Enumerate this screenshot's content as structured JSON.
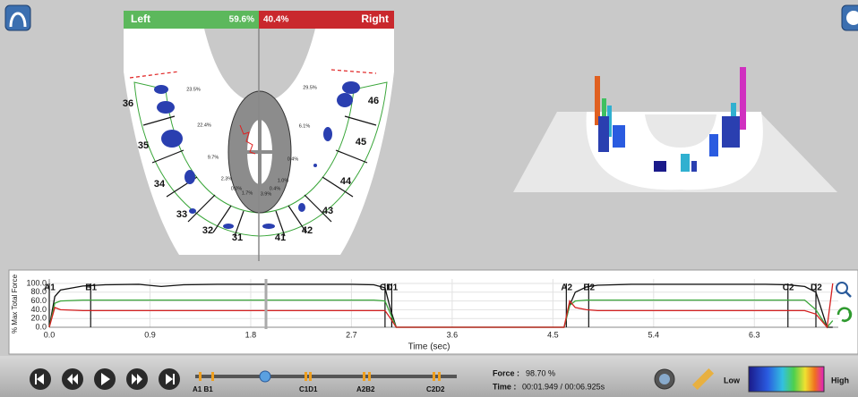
{
  "balance": {
    "left_label": "Left",
    "left_value": "59.6%",
    "right_value": "40.4%",
    "right_label": "Right"
  },
  "teeth": [
    "36",
    "35",
    "34",
    "33",
    "32",
    "31",
    "41",
    "42",
    "43",
    "44",
    "45",
    "46"
  ],
  "percentages": [
    "23.5%",
    "22.4%",
    "9.7%",
    "2.3%",
    "0.0%",
    "1.7%",
    "3.9%",
    "0.4%",
    "1.0%",
    "0.4%",
    "6.1%",
    "29.5%"
  ],
  "graph": {
    "type": "line",
    "y_label": "% Max Total Force",
    "x_label": "Time (sec)",
    "xlim": [
      0,
      7.05
    ],
    "ylim": [
      0,
      100
    ],
    "yticks": [
      {
        "value": 100,
        "label": "100.0"
      },
      {
        "value": 80,
        "label": "80.0"
      },
      {
        "value": 60,
        "label": "60.0"
      },
      {
        "value": 40,
        "label": "40.0"
      },
      {
        "value": 20,
        "label": "20.0"
      },
      {
        "value": 0,
        "label": "0.0"
      }
    ],
    "xticks": [
      {
        "value": 0,
        "label": "0.0"
      },
      0.9,
      1.8,
      2.7,
      3.6,
      4.5,
      5.4,
      6.3
    ],
    "events": [
      {
        "label": "A1",
        "x": 0
      },
      {
        "label": "B1",
        "x": 0.37
      },
      {
        "label": "C1",
        "x": 3.0
      },
      {
        "label": "D1",
        "x": 3.06
      },
      {
        "label": "A2",
        "x": 4.62
      },
      {
        "label": "B2",
        "x": 4.82
      },
      {
        "label": "C2",
        "x": 6.6
      },
      {
        "label": "D2",
        "x": 6.85
      }
    ],
    "x": [
      0,
      0.05,
      0.1,
      0.3,
      0.5,
      0.8,
      1.0,
      1.2,
      1.5,
      1.8,
      2.1,
      2.4,
      2.7,
      2.9,
      3.0,
      3.05,
      3.1,
      4.5,
      4.6,
      4.65,
      4.7,
      4.8,
      4.9,
      5.2,
      5.6,
      6.0,
      6.4,
      6.6,
      6.75,
      6.85,
      6.95,
      7.0
    ],
    "series": [
      {
        "color": "#111111",
        "values": [
          0,
          70,
          85,
          94,
          97,
          98,
          93,
          97,
          98,
          98,
          98,
          98,
          98,
          97,
          90,
          40,
          0,
          0,
          0,
          50,
          80,
          92,
          96,
          98,
          98,
          98,
          98,
          97,
          93,
          80,
          0,
          0
        ]
      },
      {
        "color": "#3aa63a",
        "values": [
          0,
          55,
          60,
          62,
          62,
          62,
          62,
          62,
          62,
          62,
          62,
          62,
          62,
          62,
          60,
          30,
          0,
          0,
          0,
          50,
          60,
          62,
          62,
          62,
          62,
          62,
          62,
          62,
          62,
          40,
          0,
          15
        ]
      },
      {
        "color": "#d42020",
        "values": [
          0,
          45,
          40,
          38,
          38,
          38,
          38,
          38,
          38,
          38,
          38,
          38,
          38,
          38,
          38,
          20,
          0,
          0,
          0,
          60,
          45,
          40,
          38,
          38,
          38,
          38,
          38,
          38,
          38,
          30,
          0,
          100
        ]
      }
    ]
  },
  "toolbar": {
    "timeline_labels": [
      "A1 B1",
      "C1D1",
      "A2B2",
      "C2D2"
    ],
    "force_label": "Force :",
    "force_value": "98.70 %",
    "time_label": "Time :",
    "time_value": "00:01.949 / 00:06.925s",
    "scale_low": "Low",
    "scale_high": "High"
  }
}
